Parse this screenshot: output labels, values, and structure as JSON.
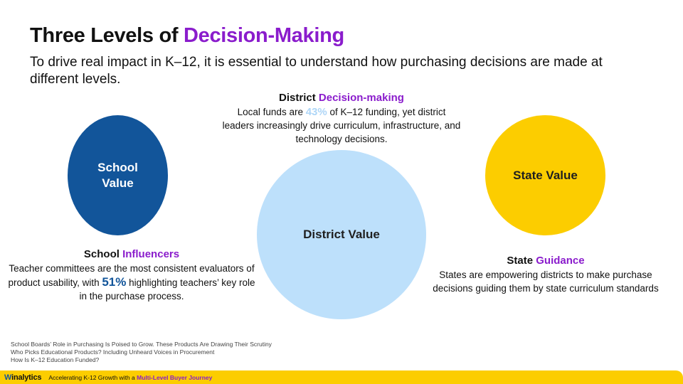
{
  "slide": {
    "title_prefix": "Three Levels of ",
    "title_accent": "Decision-Making",
    "subtitle": "To drive real impact in K–12, it is essential to understand how purchasing decisions are made at different levels."
  },
  "circles": {
    "school": {
      "label_line1": "School",
      "label_line2": "Value"
    },
    "district": {
      "label": "District Value"
    },
    "state": {
      "label": "State Value"
    }
  },
  "district_block": {
    "head_plain": "District ",
    "head_accent": "Decision-making",
    "text_before": "Local funds are ",
    "stat": "43%",
    "text_after": " of K–12 funding, yet district leaders increasingly drive curriculum, infrastructure, and technology decisions."
  },
  "school_block": {
    "head_plain": "School ",
    "head_accent": "Influencers",
    "text_before": "Teacher committees are the most consistent evaluators of product usability, with ",
    "stat": "51%",
    "text_after": " highlighting teachers’ key role in the purchase process."
  },
  "state_block": {
    "head_plain": "State ",
    "head_accent": "Guidance",
    "text": "States are empowering districts to make purchase decisions guiding them by state curriculum standards"
  },
  "sources": [
    "School Boards’ Role in Purchasing Is Poised to Grow. These Products Are Drawing Their Scrutiny",
    "Who Picks Educational Products? Including Unheard Voices in Procurement",
    "How Is K–12 Education Funded?"
  ],
  "footer": {
    "logo_w": "W",
    "logo_rest": "inalytics",
    "tagline_plain": "Accelerating K-12 Growth with a ",
    "tagline_accent": "Multi-Level Buyer Journey"
  },
  "colors": {
    "accent_purple": "#8a1ccc",
    "school_blue": "#12559a",
    "district_light_blue": "#bde0fb",
    "state_yellow": "#fccd00"
  }
}
